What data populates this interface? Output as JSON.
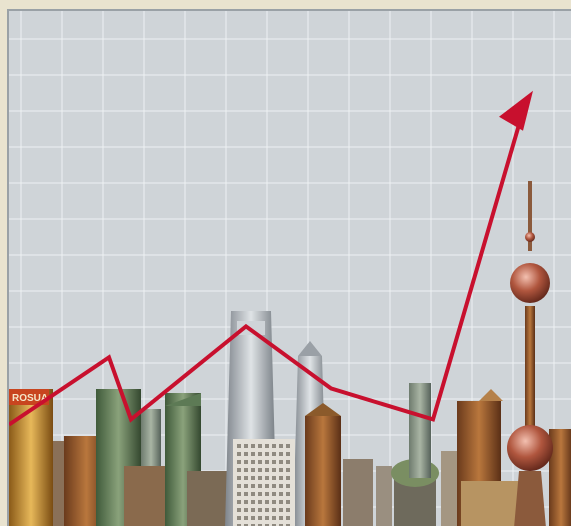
{
  "scene": {
    "description_icon": "stock-growth-over-city-skyline-icon",
    "colors": {
      "frame": "#e9e3cf",
      "sky": "#cfd4d8",
      "grid": "#eef1f3",
      "trend_line": "#c8102e"
    },
    "skyline_sign_text": "ROSUA"
  },
  "chart_data": {
    "type": "line",
    "values": [
      0.2,
      0.33,
      0.21,
      0.39,
      0.27,
      0.21,
      0.78
    ],
    "grid": true
  }
}
